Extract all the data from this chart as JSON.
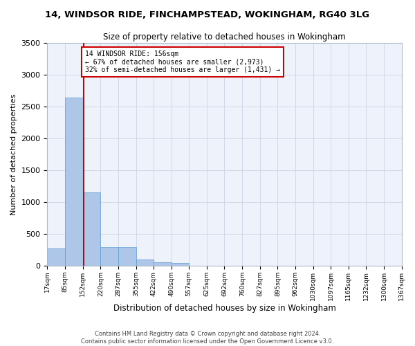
{
  "title1": "14, WINDSOR RIDE, FINCHAMPSTEAD, WOKINGHAM, RG40 3LG",
  "title2": "Size of property relative to detached houses in Wokingham",
  "xlabel": "Distribution of detached houses by size in Wokingham",
  "ylabel": "Number of detached properties",
  "footer1": "Contains HM Land Registry data © Crown copyright and database right 2024.",
  "footer2": "Contains public sector information licensed under the Open Government Licence v3.0.",
  "annotation_line1": "14 WINDSOR RIDE: 156sqm",
  "annotation_line2": "← 67% of detached houses are smaller (2,973)",
  "annotation_line3": "32% of semi-detached houses are larger (1,431) →",
  "property_size": 156,
  "bar_edges": [
    17,
    85,
    152,
    220,
    287,
    355,
    422,
    490,
    557,
    625,
    692,
    760,
    827,
    895,
    962,
    1030,
    1097,
    1165,
    1232,
    1300,
    1367
  ],
  "bar_heights": [
    275,
    2640,
    1150,
    290,
    290,
    100,
    60,
    45,
    0,
    0,
    0,
    0,
    0,
    0,
    0,
    0,
    0,
    0,
    0,
    0
  ],
  "bar_color": "#aec6e8",
  "bar_edge_color": "#5b9bd5",
  "red_line_color": "#cc0000",
  "annotation_box_color": "#cc0000",
  "grid_color": "#d0d8e8",
  "bg_color": "#eef2fa",
  "ylim": [
    0,
    3500
  ],
  "yticks": [
    0,
    500,
    1000,
    1500,
    2000,
    2500,
    3000,
    3500
  ]
}
